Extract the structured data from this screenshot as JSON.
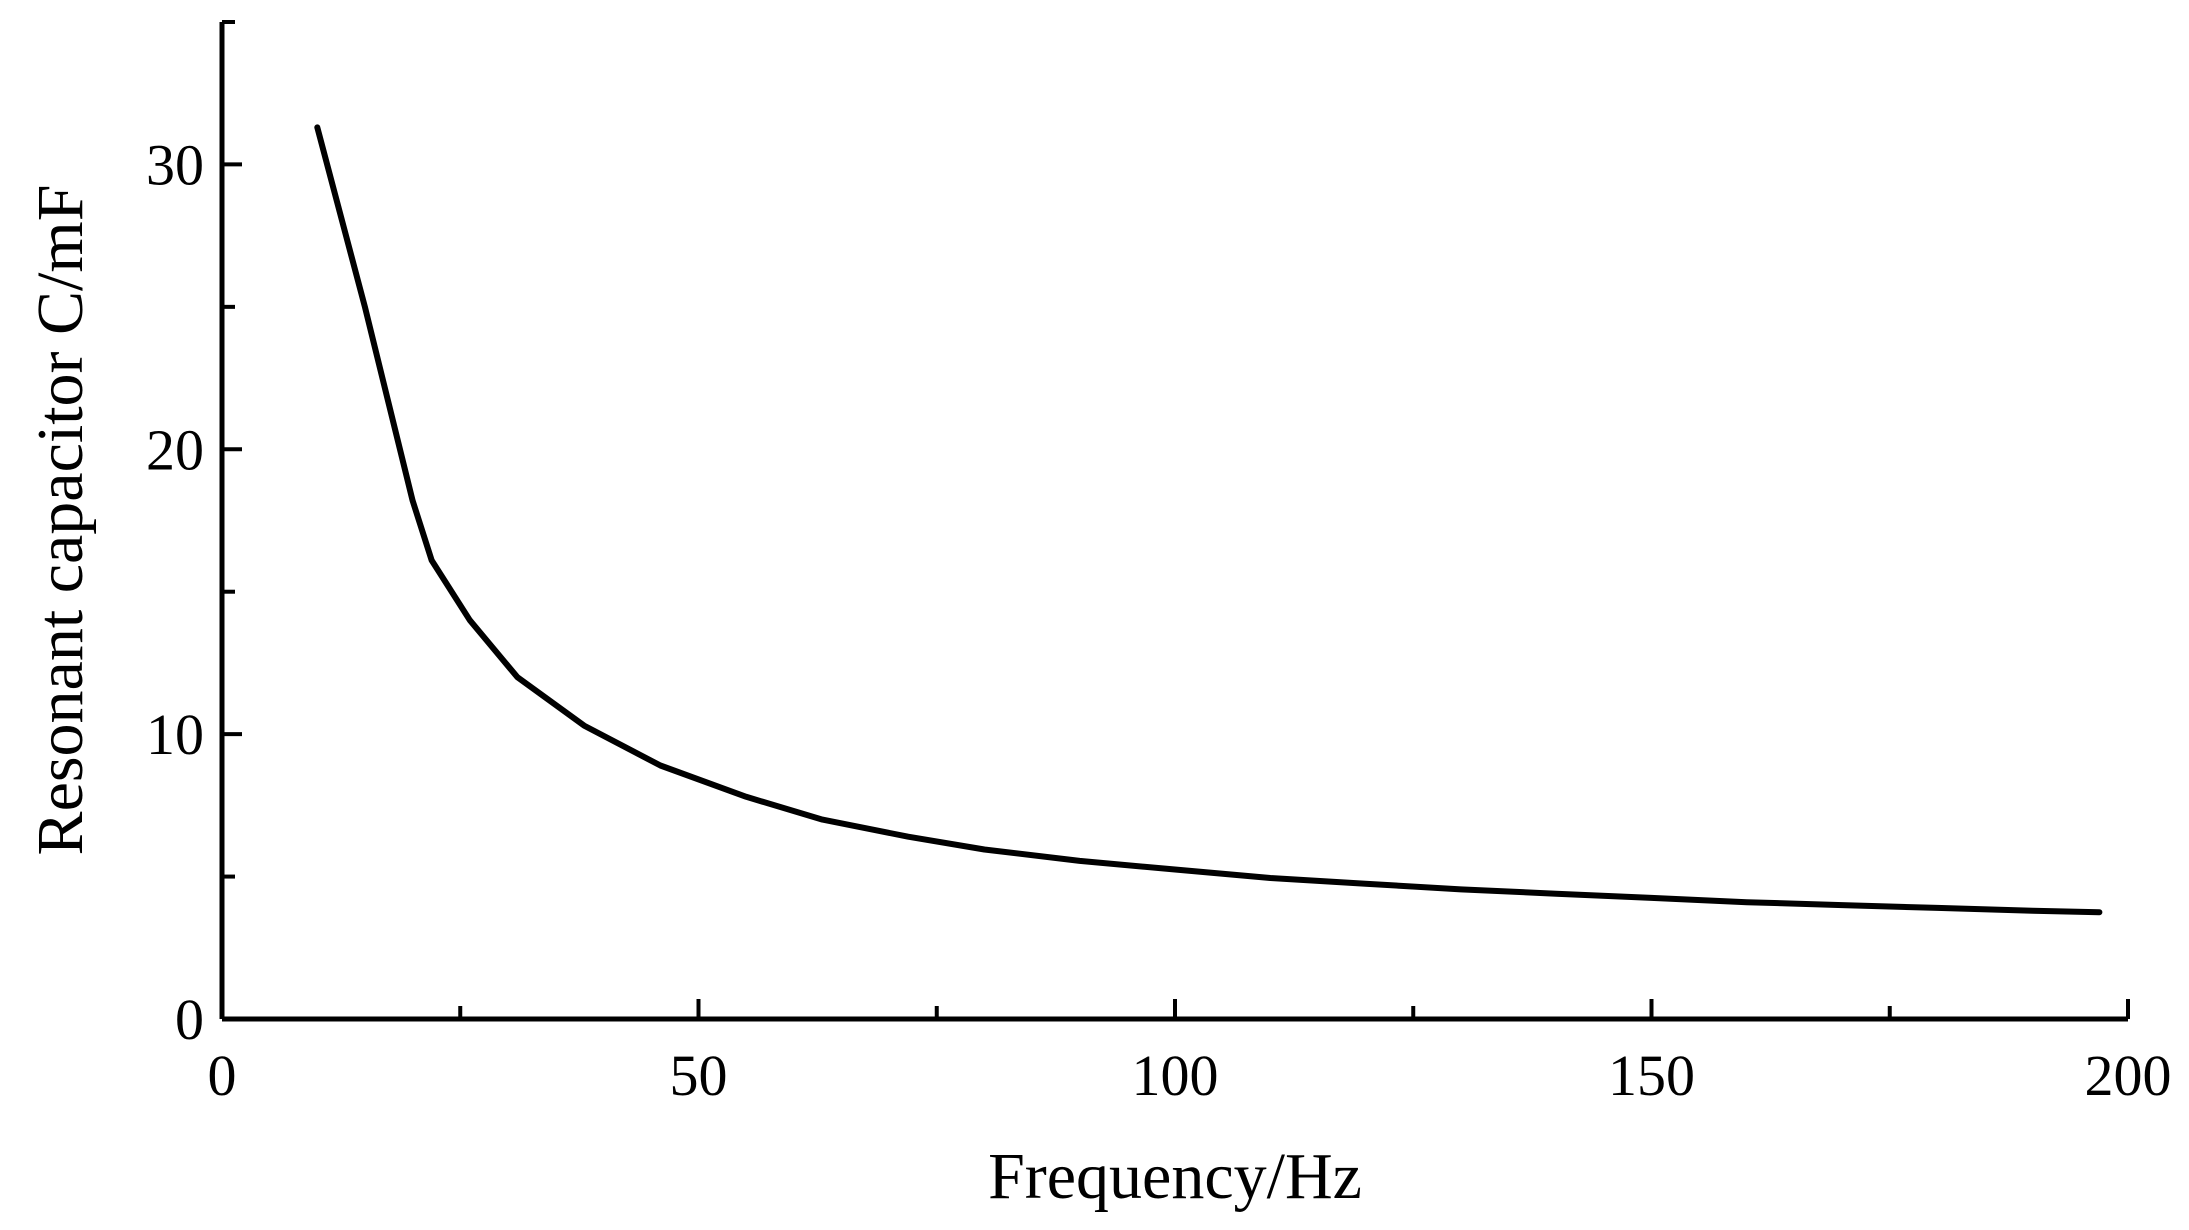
{
  "chart_data": {
    "type": "line",
    "xlabel": "Frequency/Hz",
    "ylabel": "Resonant capacitor C/mF",
    "xlim": [
      0,
      200
    ],
    "ylim": [
      0,
      35
    ],
    "x_ticks": [
      0,
      50,
      100,
      150,
      200
    ],
    "x_minor_ticks": [
      25,
      75,
      125,
      175
    ],
    "y_ticks": [
      0,
      10,
      20,
      30
    ],
    "y_minor_ticks": [
      5,
      15,
      25,
      35
    ],
    "grid": false,
    "series": [
      {
        "color": "#000000",
        "x": [
          10,
          15,
          20,
          22,
          26,
          31,
          38,
          46,
          55,
          63,
          72,
          80,
          90,
          100,
          110,
          120,
          130,
          140,
          150,
          160,
          170,
          180,
          190,
          197
        ],
        "y": [
          31.3,
          25,
          18.2,
          16.1,
          14.0,
          12.0,
          10.3,
          8.9,
          7.8,
          7.0,
          6.4,
          5.95,
          5.55,
          5.25,
          4.95,
          4.75,
          4.55,
          4.4,
          4.25,
          4.1,
          4.0,
          3.9,
          3.8,
          3.75
        ]
      }
    ]
  }
}
